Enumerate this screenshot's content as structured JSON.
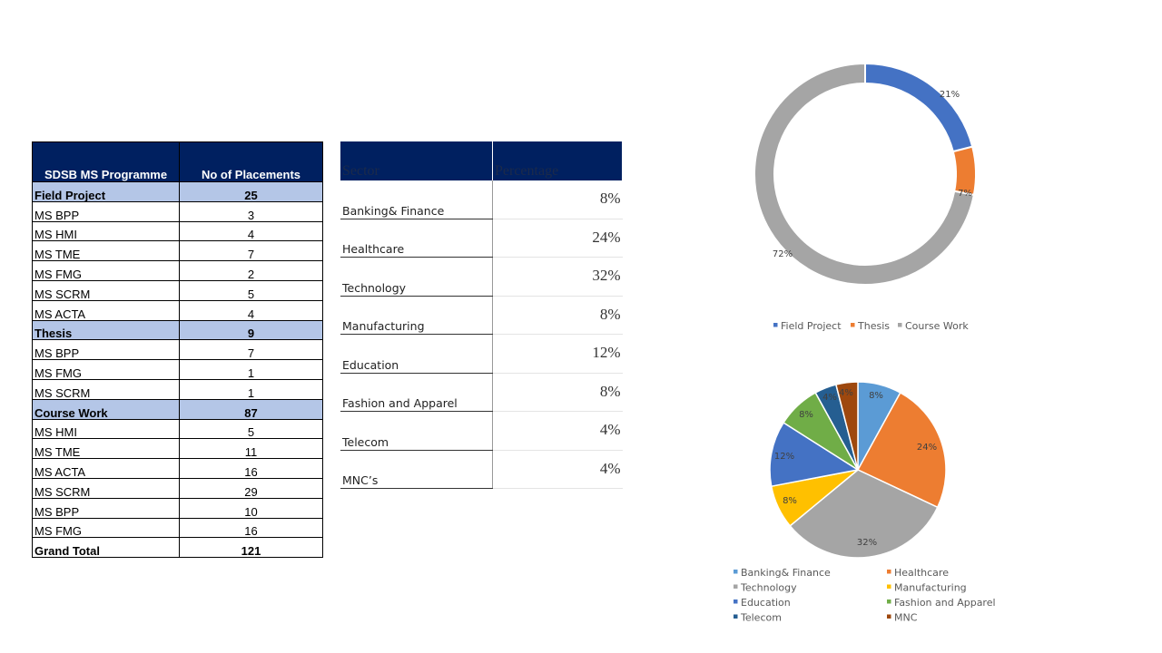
{
  "placements_table": {
    "headers": [
      "SDSB MS Programme",
      "No of Placements"
    ],
    "rows": [
      {
        "label": "Field Project",
        "value": "25",
        "group": true
      },
      {
        "label": "MS BPP",
        "value": "3"
      },
      {
        "label": "MS HMI",
        "value": "4"
      },
      {
        "label": "MS TME",
        "value": "7"
      },
      {
        "label": "MS FMG",
        "value": "2"
      },
      {
        "label": "MS SCRM",
        "value": "5"
      },
      {
        "label": "MS ACTA",
        "value": "4"
      },
      {
        "label": "Thesis",
        "value": "9",
        "group": true
      },
      {
        "label": "MS BPP",
        "value": "7"
      },
      {
        "label": "MS FMG",
        "value": "1"
      },
      {
        "label": "MS SCRM",
        "value": "1"
      },
      {
        "label": "Course Work",
        "value": "87",
        "group": true
      },
      {
        "label": "MS HMI",
        "value": "5"
      },
      {
        "label": "MS TME",
        "value": "11"
      },
      {
        "label": "MS ACTA",
        "value": "16"
      },
      {
        "label": "MS SCRM",
        "value": "29"
      },
      {
        "label": "MS BPP",
        "value": "10"
      },
      {
        "label": "MS FMG",
        "value": "16"
      },
      {
        "label": "Grand Total",
        "value": "121",
        "total": true
      }
    ]
  },
  "sector_table": {
    "headers": [
      "Sector",
      "Percentage"
    ],
    "rows": [
      {
        "sector": "Banking& Finance",
        "pct": "8%"
      },
      {
        "sector": "Healthcare",
        "pct": "24%"
      },
      {
        "sector": "Technology",
        "pct": "32%"
      },
      {
        "sector": "Manufacturing",
        "pct": "8%"
      },
      {
        "sector": "Education",
        "pct": "12%"
      },
      {
        "sector": "Fashion and Apparel",
        "pct": "8%"
      },
      {
        "sector": "Telecom",
        "pct": "4%"
      },
      {
        "sector": "MNC’s",
        "pct": "4%"
      }
    ]
  },
  "chart_data": [
    {
      "type": "pie",
      "variant": "doughnut",
      "categories": [
        "Field Project",
        "Thesis",
        "Course Work"
      ],
      "values": [
        21,
        7,
        72
      ],
      "labels": [
        "21%",
        "7%",
        "72%"
      ],
      "colors": [
        "#4472c4",
        "#ed7d31",
        "#a5a5a5"
      ],
      "legend_position": "bottom"
    },
    {
      "type": "pie",
      "categories": [
        "Banking& Finance",
        "Healthcare",
        "Technology",
        "Manufacturing",
        "Education",
        "Fashion and Apparel",
        "Telecom",
        "MNC"
      ],
      "values": [
        8,
        24,
        32,
        8,
        12,
        8,
        4,
        4
      ],
      "labels": [
        "8%",
        "24%",
        "32%",
        "8%",
        "12%",
        "8%",
        "4%",
        "4%"
      ],
      "colors": [
        "#5b9bd5",
        "#ed7d31",
        "#a5a5a5",
        "#ffc000",
        "#4472c4",
        "#70ad47",
        "#255e91",
        "#9e480e"
      ],
      "legend_position": "bottom"
    }
  ]
}
